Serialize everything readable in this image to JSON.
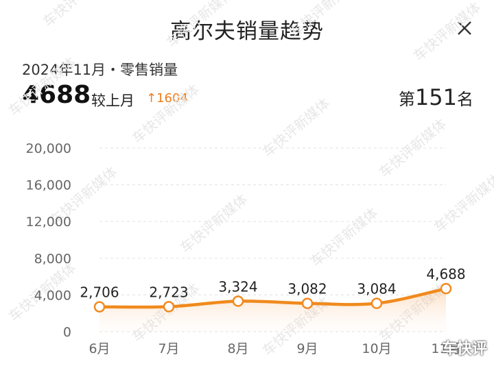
{
  "header": {
    "title": "高尔夫销量趋势",
    "close_icon": "close-icon"
  },
  "summary": {
    "period": "2024年11月・零售销量",
    "value": "4688",
    "compare_label": "较上月",
    "delta_arrow": "↑",
    "delta": "1604",
    "rank_prefix": "第",
    "rank": "151",
    "rank_suffix": "名"
  },
  "colors": {
    "accent": "#f07d1d",
    "line": "#f08a1e",
    "grid": "#e6e6e6"
  },
  "watermark": {
    "text": "车快评新媒体",
    "logo": "车快评"
  },
  "chart_data": {
    "type": "area",
    "categories": [
      "6月",
      "7月",
      "8月",
      "9月",
      "10月",
      "11月"
    ],
    "values": [
      2706,
      2723,
      3324,
      3082,
      3084,
      4688
    ],
    "value_labels": [
      "2,706",
      "2,723",
      "3,324",
      "3,082",
      "3,084",
      "4,688"
    ],
    "y_ticks": [
      "0",
      "4,000",
      "8,000",
      "12,000",
      "16,000",
      "20,000"
    ],
    "ylim": [
      0,
      20000
    ],
    "grid": true,
    "smooth": true
  }
}
